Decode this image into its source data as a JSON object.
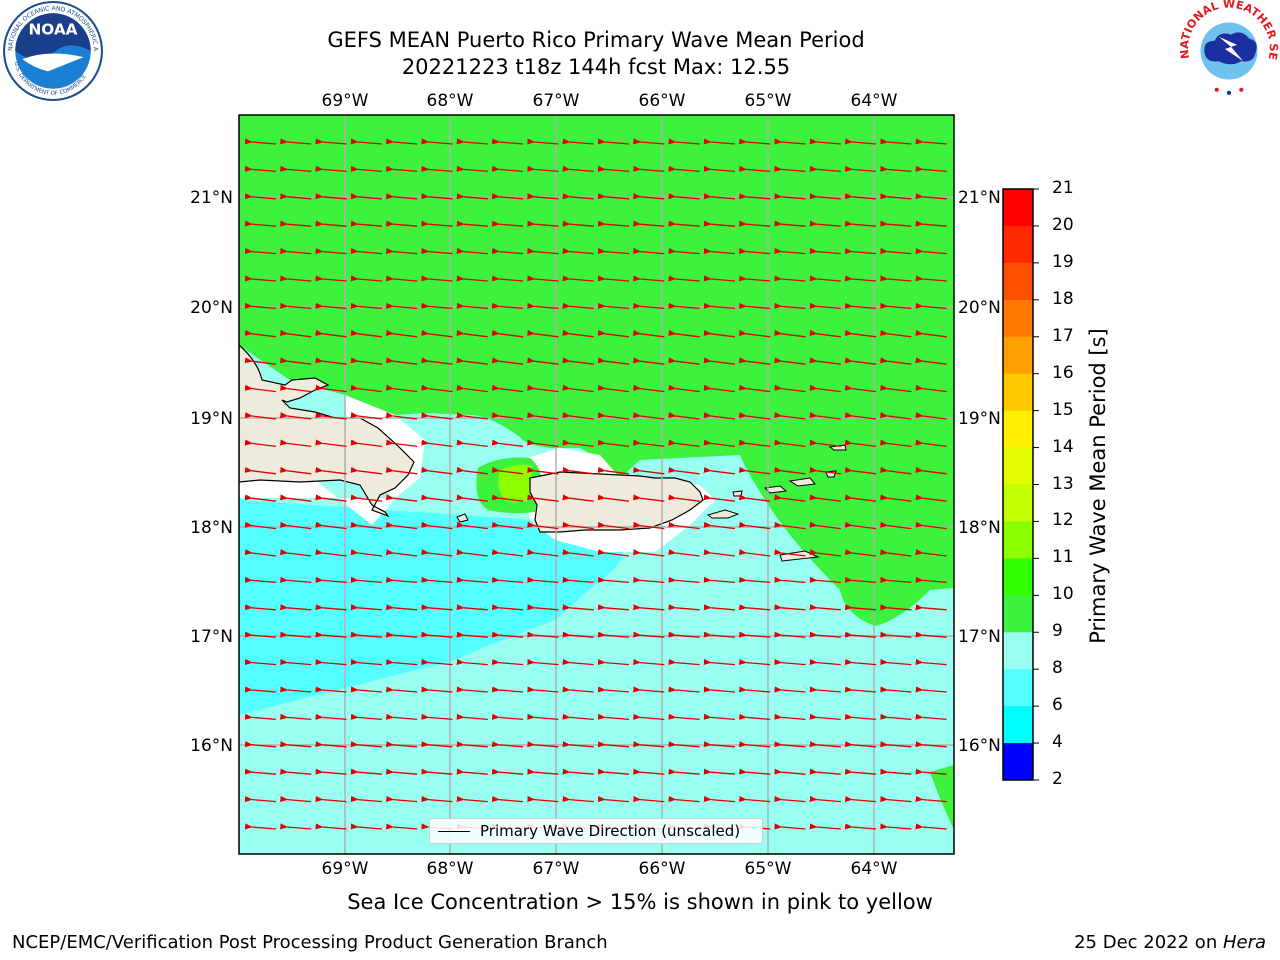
{
  "title_line1": "GEFS MEAN Puerto Rico Primary Wave Mean Period",
  "title_line2": "20221223 t18z 144h fcst   Max: 12.55",
  "lon_labels": [
    "69°W",
    "68°W",
    "67°W",
    "66°W",
    "65°W",
    "64°W"
  ],
  "lat_labels": [
    "21°N",
    "20°N",
    "19°N",
    "18°N",
    "17°N",
    "16°N"
  ],
  "colorbar": {
    "title": "Primary Wave Mean Period [s]",
    "ticks": [
      "21",
      "20",
      "19",
      "18",
      "17",
      "16",
      "15",
      "14",
      "13",
      "12",
      "11",
      "10",
      "9",
      "8",
      "6",
      "4",
      "2"
    ],
    "colors": [
      "#ff0000",
      "#ff2800",
      "#ff5000",
      "#ff7800",
      "#ffa000",
      "#ffc800",
      "#fff000",
      "#e6ff00",
      "#c3ff00",
      "#8cff00",
      "#32ff00",
      "#3cf23c",
      "#99fff0",
      "#55ffff",
      "#00ffff",
      "#0080ff",
      "#0000ff"
    ]
  },
  "legend": {
    "label": "Primary Wave Direction (unscaled)"
  },
  "caption": "Sea Ice Concentration > 15% is shown in pink to yellow",
  "footer": {
    "left": "NCEP/EMC/Verification Post Processing Product Generation Branch",
    "date": "25 Dec 2022 on ",
    "machine": "Hera"
  },
  "logos": {
    "left": "NOAA",
    "right": "NATIONAL WEATHER SERVICE"
  },
  "map_colors": {
    "green": "#3cf23c",
    "aqua": "#99fff0",
    "cyan": "#55ffff",
    "land": "#efebdc",
    "coast": "#ffffff",
    "arrow": "#e00000"
  }
}
